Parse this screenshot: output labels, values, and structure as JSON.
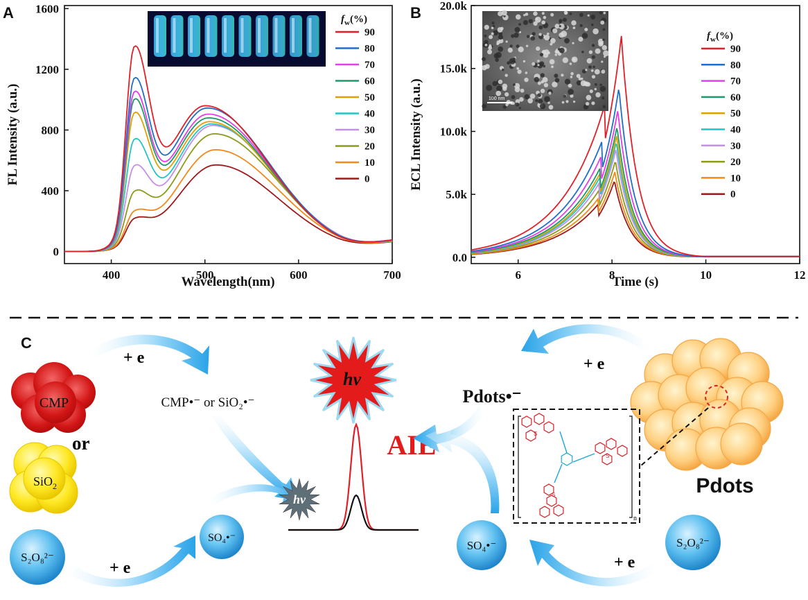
{
  "colors": {
    "90": "#e21f26",
    "80": "#1f6fc8",
    "70": "#e33ee6",
    "60": "#1a9b6a",
    "50": "#e0a000",
    "40": "#22c4c6",
    "30": "#c58ee8",
    "20": "#8d9a18",
    "10": "#f08a1a",
    "0": "#a0181a",
    "blue_sphere": "#2fa3e0",
    "aie_red": "#e41b1b"
  },
  "chart_data": [
    {
      "panel": "A",
      "type": "line",
      "xlabel": "Wavelength(nm)",
      "ylabel": "FL Intensity (a.u.)",
      "xlim": [
        350,
        700
      ],
      "ylim": [
        -80,
        1620
      ],
      "xticks": [
        "400",
        "500",
        "600",
        "700"
      ],
      "yticks": [
        "0",
        "400",
        "800",
        "1200",
        "1600"
      ],
      "legend_title": "f_w(%)",
      "legend_placement": "top-right",
      "series": [
        {
          "name": "90",
          "peak1": 1360,
          "shoulder": 960,
          "v700": 120
        },
        {
          "name": "80",
          "peak1": 1150,
          "shoulder": 945,
          "v700": 118
        },
        {
          "name": "70",
          "peak1": 1060,
          "shoulder": 905,
          "v700": 116
        },
        {
          "name": "60",
          "peak1": 1010,
          "shoulder": 880,
          "v700": 114
        },
        {
          "name": "50",
          "peak1": 920,
          "shoulder": 855,
          "v700": 112
        },
        {
          "name": "40",
          "peak1": 745,
          "shoulder": 840,
          "v700": 110
        },
        {
          "name": "30",
          "peak1": 570,
          "shoulder": 830,
          "v700": 108
        },
        {
          "name": "20",
          "peak1": 400,
          "shoulder": 775,
          "v700": 105
        },
        {
          "name": "10",
          "peak1": 270,
          "shoulder": 670,
          "v700": 102
        },
        {
          "name": "0",
          "peak1": 220,
          "shoulder": 570,
          "v700": 100
        }
      ]
    },
    {
      "panel": "B",
      "type": "line",
      "xlabel": "Time (s)",
      "ylabel": "ECL Intensity (a.u.)",
      "xlim": [
        5,
        12
      ],
      "ylim": [
        -500,
        20000
      ],
      "xticks": [
        "6",
        "8",
        "10",
        "12"
      ],
      "yticks": [
        "0.0",
        "5.0k",
        "10.0k",
        "15.0k",
        "20.0k"
      ],
      "legend_title": "f_w(%)",
      "legend_placement": "top-right",
      "series": [
        {
          "name": "90",
          "peak": 17600
        },
        {
          "name": "80",
          "peak": 13500
        },
        {
          "name": "70",
          "peak": 11700
        },
        {
          "name": "60",
          "peak": 10400
        },
        {
          "name": "50",
          "peak": 9700
        },
        {
          "name": "40",
          "peak": 9200
        },
        {
          "name": "30",
          "peak": 8600
        },
        {
          "name": "20",
          "peak": 7700
        },
        {
          "name": "10",
          "peak": 6800
        },
        {
          "name": "0",
          "peak": 6100
        }
      ]
    }
  ],
  "panel_labels": {
    "a": "A",
    "b": "B",
    "c": "C"
  },
  "legend": {
    "title_f": "f",
    "title_sub": "w",
    "title_rest": "(%)"
  },
  "inset_b": {
    "scale_bar": "100 nm"
  },
  "scheme": {
    "plus_e": "+ e",
    "cmp": "CMP",
    "or": "or",
    "sio2": "SiO",
    "sio2_sub": "2",
    "radical_text": "CMP•⁻ or SiO₂•⁻",
    "hv": "hv",
    "aie": "AIE",
    "pdots_radical": "Pdots•⁻",
    "pdots": "Pdots",
    "s2o8": "S₂O₈²⁻",
    "so4": "SO₄•⁻",
    "n_sub": "n"
  }
}
